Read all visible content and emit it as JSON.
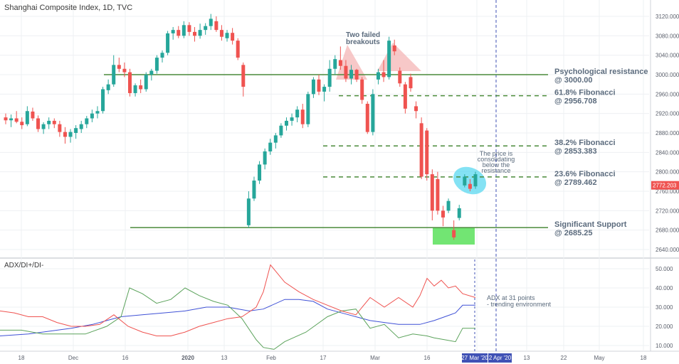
{
  "chart_title": "Shanghai Composite Index, 1D, TVC",
  "indicator_title": "ADX/DI+/DI-",
  "colors": {
    "up": "#26a69a",
    "down": "#ef5350",
    "level": "#4a8a3a",
    "annotation": "#5b6b7d",
    "adx": "#3f51d6",
    "di_plus": "#5ca35c",
    "di_minus": "#ef5350",
    "cyan": "#5bd8f0",
    "green_box": "#59e05a",
    "pink": "#f4b6b6",
    "price_badge": "#ef5350",
    "date_badge": "#3f51b5",
    "dash_line": "#3f51b5"
  },
  "chart_data": [
    {
      "type": "candlestick",
      "title": "Shanghai Composite Index, 1D, TVC",
      "ylim": [
        2620,
        3140
      ],
      "y_ticks": [
        3120,
        3080,
        3040,
        3000,
        2960,
        2920,
        2880,
        2840,
        2800,
        2760,
        2720,
        2680,
        2640
      ],
      "y_tick_labels": [
        "3120.000",
        "3080.000",
        "3040.000",
        "3000.000",
        "2960.000",
        "2920.000",
        "2880.000",
        "2840.000",
        "2800.000",
        "2760.000",
        "2720.000",
        "2680.000",
        "2640.000"
      ],
      "x_tick_labels": [
        "18",
        "Dec",
        "16",
        "2020",
        "13",
        "Feb",
        "17",
        "Mar",
        "16",
        "2 Apr '20",
        "13",
        "22",
        "May",
        "18"
      ],
      "last_price": "2772.203",
      "candles": [
        {
          "o": 2912,
          "h": 2920,
          "l": 2898,
          "c": 2906
        },
        {
          "o": 2906,
          "h": 2918,
          "l": 2892,
          "c": 2910
        },
        {
          "o": 2910,
          "h": 2925,
          "l": 2900,
          "c": 2903
        },
        {
          "o": 2903,
          "h": 2912,
          "l": 2888,
          "c": 2896
        },
        {
          "o": 2898,
          "h": 2935,
          "l": 2894,
          "c": 2925
        },
        {
          "o": 2924,
          "h": 2932,
          "l": 2905,
          "c": 2910
        },
        {
          "o": 2910,
          "h": 2916,
          "l": 2882,
          "c": 2888
        },
        {
          "o": 2888,
          "h": 2902,
          "l": 2878,
          "c": 2898
        },
        {
          "o": 2898,
          "h": 2912,
          "l": 2888,
          "c": 2905
        },
        {
          "o": 2905,
          "h": 2910,
          "l": 2890,
          "c": 2898
        },
        {
          "o": 2898,
          "h": 2905,
          "l": 2872,
          "c": 2882
        },
        {
          "o": 2882,
          "h": 2892,
          "l": 2858,
          "c": 2872
        },
        {
          "o": 2872,
          "h": 2888,
          "l": 2860,
          "c": 2882
        },
        {
          "o": 2880,
          "h": 2896,
          "l": 2868,
          "c": 2890
        },
        {
          "o": 2888,
          "h": 2905,
          "l": 2880,
          "c": 2898
        },
        {
          "o": 2898,
          "h": 2915,
          "l": 2890,
          "c": 2910
        },
        {
          "o": 2910,
          "h": 2928,
          "l": 2902,
          "c": 2920
        },
        {
          "o": 2920,
          "h": 2935,
          "l": 2910,
          "c": 2925
        },
        {
          "o": 2925,
          "h": 2975,
          "l": 2920,
          "c": 2970
        },
        {
          "o": 2968,
          "h": 2990,
          "l": 2960,
          "c": 2980
        },
        {
          "o": 2980,
          "h": 3040,
          "l": 2975,
          "c": 3020
        },
        {
          "o": 3020,
          "h": 3035,
          "l": 3005,
          "c": 3012
        },
        {
          "o": 3012,
          "h": 3025,
          "l": 2995,
          "c": 3005
        },
        {
          "o": 3005,
          "h": 3012,
          "l": 2955,
          "c": 2962
        },
        {
          "o": 2962,
          "h": 2982,
          "l": 2955,
          "c": 2978
        },
        {
          "o": 2978,
          "h": 2990,
          "l": 2962,
          "c": 2970
        },
        {
          "o": 2970,
          "h": 3005,
          "l": 2965,
          "c": 3000
        },
        {
          "o": 3000,
          "h": 3012,
          "l": 2988,
          "c": 3008
        },
        {
          "o": 3008,
          "h": 3040,
          "l": 3002,
          "c": 3035
        },
        {
          "o": 3035,
          "h": 3050,
          "l": 3025,
          "c": 3045
        },
        {
          "o": 3045,
          "h": 3090,
          "l": 3040,
          "c": 3085
        },
        {
          "o": 3085,
          "h": 3098,
          "l": 3072,
          "c": 3092
        },
        {
          "o": 3092,
          "h": 3100,
          "l": 3075,
          "c": 3080
        },
        {
          "o": 3080,
          "h": 3110,
          "l": 3075,
          "c": 3102
        },
        {
          "o": 3102,
          "h": 3108,
          "l": 3080,
          "c": 3088
        },
        {
          "o": 3088,
          "h": 3098,
          "l": 3068,
          "c": 3080
        },
        {
          "o": 3080,
          "h": 3105,
          "l": 3074,
          "c": 3092
        },
        {
          "o": 3092,
          "h": 3106,
          "l": 3082,
          "c": 3100
        },
        {
          "o": 3100,
          "h": 3125,
          "l": 3092,
          "c": 3115
        },
        {
          "o": 3110,
          "h": 3120,
          "l": 3088,
          "c": 3092
        },
        {
          "o": 3092,
          "h": 3102,
          "l": 3070,
          "c": 3078
        },
        {
          "o": 3075,
          "h": 3092,
          "l": 3068,
          "c": 3086
        },
        {
          "o": 3086,
          "h": 3096,
          "l": 3062,
          "c": 3070
        },
        {
          "o": 3070,
          "h": 3075,
          "l": 3030,
          "c": 3035
        },
        {
          "o": 3020,
          "h": 3025,
          "l": 2955,
          "c": 2975
        },
        {
          "o": 2690,
          "h": 2760,
          "l": 2685,
          "c": 2745
        },
        {
          "o": 2745,
          "h": 2790,
          "l": 2740,
          "c": 2782
        },
        {
          "o": 2782,
          "h": 2822,
          "l": 2775,
          "c": 2815
        },
        {
          "o": 2815,
          "h": 2848,
          "l": 2805,
          "c": 2842
        },
        {
          "o": 2842,
          "h": 2868,
          "l": 2835,
          "c": 2860
        },
        {
          "o": 2860,
          "h": 2880,
          "l": 2848,
          "c": 2875
        },
        {
          "o": 2875,
          "h": 2900,
          "l": 2870,
          "c": 2895
        },
        {
          "o": 2895,
          "h": 2912,
          "l": 2885,
          "c": 2905
        },
        {
          "o": 2905,
          "h": 2920,
          "l": 2895,
          "c": 2912
        },
        {
          "o": 2912,
          "h": 2935,
          "l": 2902,
          "c": 2928
        },
        {
          "o": 2928,
          "h": 2940,
          "l": 2890,
          "c": 2898
        },
        {
          "o": 2898,
          "h": 2965,
          "l": 2892,
          "c": 2960
        },
        {
          "o": 2960,
          "h": 2995,
          "l": 2952,
          "c": 2990
        },
        {
          "o": 2990,
          "h": 3000,
          "l": 2958,
          "c": 2965
        },
        {
          "o": 2965,
          "h": 2980,
          "l": 2945,
          "c": 2975
        },
        {
          "o": 2975,
          "h": 3030,
          "l": 2965,
          "c": 3012
        },
        {
          "o": 3012,
          "h": 3040,
          "l": 3000,
          "c": 3032
        },
        {
          "o": 3030,
          "h": 3058,
          "l": 3010,
          "c": 3018
        },
        {
          "o": 3018,
          "h": 3030,
          "l": 2985,
          "c": 2992
        },
        {
          "o": 2992,
          "h": 3020,
          "l": 2980,
          "c": 3010
        },
        {
          "o": 3010,
          "h": 3012,
          "l": 2985,
          "c": 2990
        },
        {
          "o": 2990,
          "h": 2995,
          "l": 2940,
          "c": 2948
        },
        {
          "o": 2940,
          "h": 2945,
          "l": 2878,
          "c": 2882
        },
        {
          "o": 2882,
          "h": 2970,
          "l": 2875,
          "c": 2960
        },
        {
          "o": 2990,
          "h": 3012,
          "l": 2980,
          "c": 3005
        },
        {
          "o": 3005,
          "h": 3030,
          "l": 2985,
          "c": 2995
        },
        {
          "o": 2995,
          "h": 3078,
          "l": 2990,
          "c": 3070
        },
        {
          "o": 3060,
          "h": 3072,
          "l": 3040,
          "c": 3048
        },
        {
          "o": 3008,
          "h": 3015,
          "l": 2975,
          "c": 2982
        },
        {
          "o": 2980,
          "h": 2985,
          "l": 2920,
          "c": 2930
        },
        {
          "o": 2995,
          "h": 3002,
          "l": 2965,
          "c": 2972
        },
        {
          "o": 2935,
          "h": 2945,
          "l": 2910,
          "c": 2925
        },
        {
          "o": 2900,
          "h": 2912,
          "l": 2785,
          "c": 2790
        },
        {
          "o": 2885,
          "h": 2890,
          "l": 2782,
          "c": 2795
        },
        {
          "o": 2795,
          "h": 2805,
          "l": 2700,
          "c": 2720
        },
        {
          "o": 2785,
          "h": 2800,
          "l": 2712,
          "c": 2720
        },
        {
          "o": 2720,
          "h": 2730,
          "l": 2688,
          "c": 2706
        },
        {
          "o": 2720,
          "h": 2745,
          "l": 2715,
          "c": 2740
        },
        {
          "o": 2680,
          "h": 2700,
          "l": 2660,
          "c": 2665
        },
        {
          "o": 2705,
          "h": 2732,
          "l": 2700,
          "c": 2725
        },
        {
          "o": 2772,
          "h": 2795,
          "l": 2768,
          "c": 2790
        },
        {
          "o": 2775,
          "h": 2785,
          "l": 2760,
          "c": 2765
        },
        {
          "o": 2770,
          "h": 2800,
          "l": 2765,
          "c": 2795
        }
      ],
      "levels": [
        {
          "name": "Psychological resistance",
          "value_label": "@ 3000.00",
          "value": 3000,
          "style": "solid"
        },
        {
          "name": "61.8% Fibonacci",
          "value_label": "@ 2956.708",
          "value": 2956.708,
          "style": "dashed"
        },
        {
          "name": "38.2% Fibonacci",
          "value_label": "@ 2853.383",
          "value": 2853.383,
          "style": "dashed"
        },
        {
          "name": "23.6% Fibonacci",
          "value_label": "@ 2789.462",
          "value": 2789.462,
          "style": "dashed"
        },
        {
          "name": "Significant Support",
          "value_label": "@ 2685.25",
          "value": 2685.25,
          "style": "solid"
        }
      ],
      "annotations": {
        "breakouts": [
          "Two failed",
          "breakouts"
        ],
        "consolidation": [
          "The price is",
          "consolidating",
          "below the",
          "resistance"
        ]
      }
    },
    {
      "type": "line",
      "title": "ADX/DI+/DI-",
      "ylim": [
        5,
        55
      ],
      "y_ticks": [
        50,
        40,
        30,
        20,
        10
      ],
      "y_tick_labels": [
        "50.000",
        "40.000",
        "30.000",
        "20.000",
        "10.000"
      ],
      "series": [
        {
          "name": "ADX",
          "values": [
            [
              0,
              15
            ],
            [
              40,
              16
            ],
            [
              60,
              17
            ],
            [
              100,
              19
            ],
            [
              130,
              21
            ],
            [
              150,
              23
            ],
            [
              170,
              25
            ],
            [
              200,
              26
            ],
            [
              230,
              27
            ],
            [
              260,
              28
            ],
            [
              290,
              30
            ],
            [
              320,
              30
            ],
            [
              350,
              28
            ],
            [
              370,
              29
            ],
            [
              400,
              34
            ],
            [
              420,
              34
            ],
            [
              440,
              33
            ],
            [
              460,
              29
            ],
            [
              490,
              26
            ],
            [
              520,
              23
            ],
            [
              540,
              22
            ],
            [
              560,
              21
            ],
            [
              590,
              21
            ],
            [
              610,
              23
            ],
            [
              640,
              27
            ],
            [
              650,
              31
            ],
            [
              668,
              31
            ]
          ]
        },
        {
          "name": "DI+",
          "values": [
            [
              0,
              18
            ],
            [
              30,
              18
            ],
            [
              60,
              16
            ],
            [
              90,
              16
            ],
            [
              120,
              16
            ],
            [
              150,
              20
            ],
            [
              170,
              25
            ],
            [
              182,
              40
            ],
            [
              200,
              37
            ],
            [
              220,
              32
            ],
            [
              240,
              34
            ],
            [
              260,
              40
            ],
            [
              280,
              36
            ],
            [
              300,
              33
            ],
            [
              320,
              31
            ],
            [
              340,
              24
            ],
            [
              360,
              13
            ],
            [
              370,
              9
            ],
            [
              385,
              8
            ],
            [
              400,
              12
            ],
            [
              430,
              17
            ],
            [
              460,
              25
            ],
            [
              480,
              28
            ],
            [
              500,
              29
            ],
            [
              520,
              19
            ],
            [
              540,
              21
            ],
            [
              560,
              14
            ],
            [
              580,
              16
            ],
            [
              600,
              15
            ],
            [
              610,
              14
            ],
            [
              625,
              13
            ],
            [
              640,
              12
            ],
            [
              650,
              19
            ],
            [
              668,
              19
            ]
          ]
        },
        {
          "name": "DI-",
          "values": [
            [
              0,
              28
            ],
            [
              20,
              27
            ],
            [
              40,
              25
            ],
            [
              60,
              25
            ],
            [
              80,
              22
            ],
            [
              100,
              20
            ],
            [
              120,
              20
            ],
            [
              140,
              21
            ],
            [
              160,
              26
            ],
            [
              180,
              20
            ],
            [
              200,
              17
            ],
            [
              220,
              15
            ],
            [
              240,
              15
            ],
            [
              260,
              17
            ],
            [
              280,
              20
            ],
            [
              300,
              22
            ],
            [
              320,
              24
            ],
            [
              340,
              25
            ],
            [
              360,
              30
            ],
            [
              370,
              38
            ],
            [
              380,
              52
            ],
            [
              400,
              43
            ],
            [
              420,
              38
            ],
            [
              440,
              34
            ],
            [
              460,
              31
            ],
            [
              480,
              28
            ],
            [
              500,
              26
            ],
            [
              520,
              35
            ],
            [
              540,
              30
            ],
            [
              560,
              35
            ],
            [
              580,
              30
            ],
            [
              590,
              36
            ],
            [
              600,
              45
            ],
            [
              610,
              41
            ],
            [
              620,
              44
            ],
            [
              630,
              40
            ],
            [
              640,
              41
            ],
            [
              650,
              37
            ],
            [
              668,
              35
            ]
          ]
        }
      ],
      "annotation": [
        "ADX at 31 points",
        "- trending environment"
      ]
    }
  ],
  "x_badges": [
    "27 Mar '20",
    "2 Apr '20"
  ]
}
